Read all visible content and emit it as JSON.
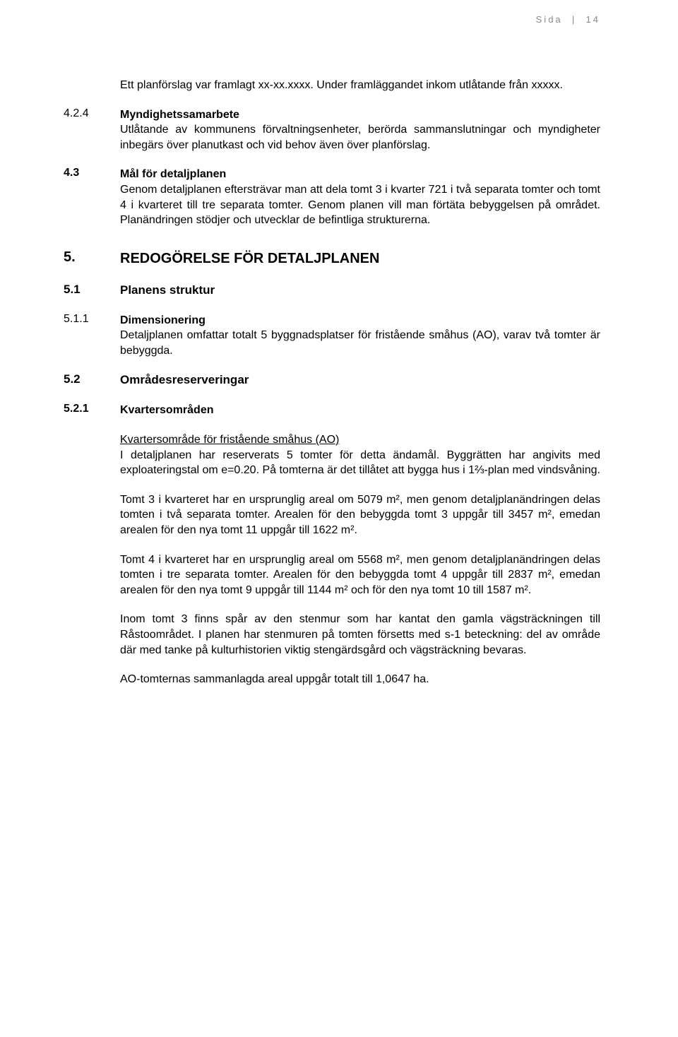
{
  "header": {
    "label": "Sida",
    "pageno": "14"
  },
  "intro": {
    "text": "Ett planförslag var framlagt xx-xx.xxxx. Under framläggandet inkom utlåtande från xxxxx."
  },
  "s4_2_4": {
    "num": "4.2.4",
    "title": "Myndighetssamarbete",
    "body": "Utlåtande av kommunens förvaltningsenheter, berörda samman­slutningar och myndigheter inbegärs över planutkast och vid behov även över planförslag."
  },
  "s4_3": {
    "num": "4.3",
    "title": "Mål för detaljplanen",
    "body": "Genom detaljplanen eftersträvar man att dela tomt 3 i kvarter 721 i två separata tomter och tomt 4 i kvarteret till tre separata tomter. Genom planen vill man förtäta bebyggelsen på området. Planändringen stödjer och utvecklar de befintliga strukturerna."
  },
  "s5": {
    "num": "5.",
    "title": "REDOGÖRELSE FÖR DETALJPLANEN"
  },
  "s5_1": {
    "num": "5.1",
    "title": "Planens struktur"
  },
  "s5_1_1": {
    "num": "5.1.1",
    "title": "Dimensionering",
    "body": "Detaljplanen omfattar totalt 5 byggnadsplatser för fristående småhus (AO), varav två tomter är bebyggda."
  },
  "s5_2": {
    "num": "5.2",
    "title": "Områdesreserveringar"
  },
  "s5_2_1": {
    "num": "5.2.1",
    "title": "Kvartersområden",
    "subhead": "Kvartersområde för fristående småhus (AO)",
    "p1": "I detaljplanen har reserverats 5 tomter för detta ändamål. Byggrätten har angivits med exploateringstal om e=0.20. På tomterna är det tillåtet att bygga hus i 1⅔-plan med vindsvåning.",
    "p2": "Tomt 3 i kvarteret har en ursprunglig areal om 5079 m², men genom detaljplanändringen delas tomten i två separata tomter. Arealen för den bebyggda tomt 3 uppgår till 3457 m², emedan arealen för den nya tomt 11 uppgår till 1622 m².",
    "p3": "Tomt 4 i kvarteret har en ursprunglig areal om 5568 m², men genom detaljplanändringen delas tomten i tre separata tomter. Arealen för den bebyggda tomt 4 uppgår till 2837 m², emedan arealen för den nya tomt 9 uppgår till 1144 m² och för den nya tomt 10 till 1587 m².",
    "p4": "Inom tomt 3 finns spår av den stenmur som har kantat den gamla vägsträckningen till Råstoområdet. I planen har stenmuren på tomten försetts med s-1 beteckning: del av område där med tanke på kulturhistorien viktig stengärdsgård och vägsträckning bevaras.",
    "p5": "AO-tomternas sammanlagda areal uppgår totalt till 1,0647 ha."
  }
}
